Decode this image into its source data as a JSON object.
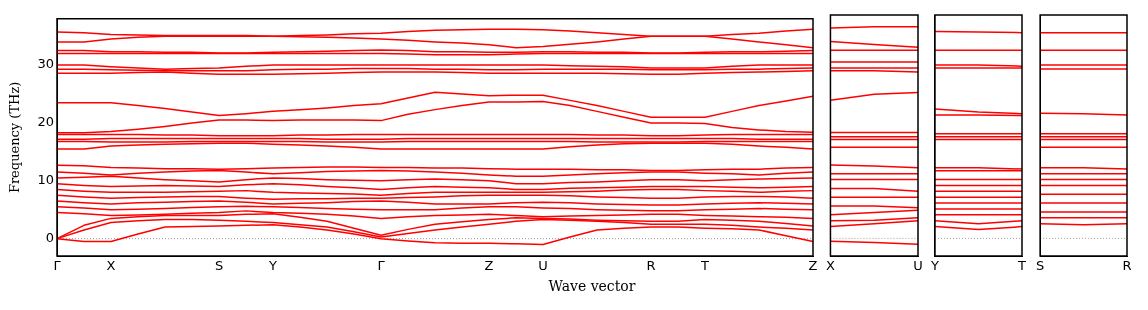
{
  "chart_data": [
    {
      "type": "line",
      "ylabel": "Frequency (THz)",
      "xlabel": "Wave vector",
      "grid": false,
      "legend": false,
      "marker": "none",
      "line_style": "solid",
      "categories": [
        "Γ",
        null,
        "X",
        null,
        null,
        null,
        "S",
        null,
        "Y",
        null,
        null,
        null,
        "Γ",
        null,
        null,
        null,
        "Z",
        null,
        "U",
        null,
        null,
        null,
        "R",
        null,
        "T",
        null,
        null,
        null,
        "Z"
      ],
      "ylim": [
        -3,
        38
      ],
      "yticks": [
        0,
        10,
        20,
        30
      ],
      "ref_lines": [
        {
          "axis": "y",
          "value": 0,
          "color": "#808080",
          "line_style": "dotted"
        }
      ],
      "series": [
        {
          "color": "#ff0000",
          "values": [
            35.7,
            35.6,
            35.3,
            35.2,
            35.1,
            35.1,
            35.1,
            35.1,
            35.0,
            35.1,
            35.2,
            35.4,
            35.5,
            35.8,
            36.0,
            36.1,
            36.2,
            36.2,
            36.1,
            35.9,
            35.6,
            35.3,
            35.0,
            35.0,
            35.0,
            35.3,
            35.5,
            35.9,
            36.2
          ]
        },
        {
          "color": "#ff0000",
          "values": [
            34.0,
            34.0,
            34.5,
            34.8,
            35.0,
            35.0,
            35.0,
            35.0,
            35.0,
            34.9,
            34.8,
            34.7,
            34.5,
            34.3,
            34.0,
            33.8,
            33.5,
            33.0,
            33.2,
            33.6,
            34.0,
            34.5,
            35.0,
            35.0,
            35.0,
            34.5,
            34.0,
            33.5,
            33.0
          ]
        },
        {
          "color": "#ff0000",
          "values": [
            32.5,
            32.5,
            32.3,
            32.3,
            32.2,
            32.2,
            32.1,
            32.1,
            32.2,
            32.3,
            32.4,
            32.5,
            32.6,
            32.5,
            32.3,
            32.3,
            32.2,
            32.2,
            32.3,
            32.3,
            32.2,
            32.2,
            32.1,
            32.1,
            32.2,
            32.3,
            32.3,
            32.4,
            32.5
          ]
        },
        {
          "color": "#ff0000",
          "values": [
            32.0,
            32.0,
            32.0,
            32.0,
            32.0,
            32.0,
            32.0,
            32.0,
            32.0,
            32.0,
            32.0,
            32.0,
            32.0,
            31.9,
            31.8,
            31.8,
            31.8,
            31.9,
            32.0,
            32.0,
            32.0,
            32.0,
            32.0,
            32.0,
            32.0,
            32.0,
            32.0,
            32.0,
            32.0
          ]
        },
        {
          "color": "#ff0000",
          "values": [
            30.0,
            30.0,
            29.7,
            29.5,
            29.3,
            29.4,
            29.5,
            29.8,
            30.0,
            30.0,
            30.0,
            30.0,
            30.0,
            30.0,
            30.0,
            30.0,
            30.0,
            30.0,
            30.0,
            29.9,
            29.8,
            29.7,
            29.5,
            29.5,
            29.5,
            29.8,
            30.0,
            30.0,
            30.0
          ]
        },
        {
          "color": "#ff0000",
          "values": [
            29.3,
            29.3,
            29.2,
            29.1,
            29.0,
            29.0,
            29.0,
            29.0,
            29.2,
            29.3,
            29.3,
            29.4,
            29.4,
            29.4,
            29.3,
            29.3,
            29.2,
            29.2,
            29.3,
            29.3,
            29.3,
            29.3,
            29.2,
            29.2,
            29.2,
            29.3,
            29.3,
            29.4,
            29.5
          ]
        },
        {
          "color": "#ff0000",
          "values": [
            28.6,
            28.6,
            28.6,
            28.7,
            28.8,
            28.6,
            28.4,
            28.4,
            28.4,
            28.5,
            28.6,
            28.7,
            28.8,
            28.8,
            28.8,
            28.7,
            28.6,
            28.6,
            28.6,
            28.6,
            28.6,
            28.5,
            28.4,
            28.4,
            28.6,
            28.7,
            28.8,
            28.9,
            29.0
          ]
        },
        {
          "color": "#ff0000",
          "values": [
            23.5,
            23.5,
            23.5,
            23.0,
            22.5,
            21.9,
            21.3,
            21.6,
            22.0,
            22.3,
            22.6,
            23.0,
            23.3,
            24.3,
            25.3,
            25.0,
            24.7,
            24.8,
            24.8,
            23.9,
            23.0,
            22.0,
            21.0,
            21.0,
            21.0,
            22.0,
            23.0,
            23.8,
            24.6
          ]
        },
        {
          "color": "#ff0000",
          "values": [
            18.3,
            18.3,
            18.5,
            18.9,
            19.4,
            20.0,
            20.5,
            20.5,
            20.4,
            20.5,
            20.5,
            20.5,
            20.4,
            21.5,
            22.3,
            23.0,
            23.6,
            23.6,
            23.7,
            23.0,
            22.0,
            21.0,
            20.0,
            20.0,
            19.9,
            19.2,
            18.8,
            18.5,
            18.4
          ]
        },
        {
          "color": "#ff0000",
          "values": [
            18.0,
            18.0,
            18.0,
            18.0,
            17.9,
            17.9,
            17.8,
            17.8,
            17.8,
            17.9,
            17.9,
            18.0,
            18.0,
            18.0,
            18.0,
            18.0,
            18.0,
            18.0,
            18.0,
            18.0,
            17.9,
            17.9,
            17.8,
            17.8,
            17.9,
            18.0,
            18.0,
            18.0,
            18.0
          ]
        },
        {
          "color": "#ff0000",
          "values": [
            17.2,
            17.2,
            17.3,
            17.3,
            17.3,
            17.3,
            17.3,
            17.3,
            17.3,
            17.3,
            17.2,
            17.2,
            17.2,
            17.3,
            17.3,
            17.3,
            17.3,
            17.3,
            17.3,
            17.3,
            17.3,
            17.3,
            17.3,
            17.3,
            17.3,
            17.3,
            17.2,
            17.2,
            17.2
          ]
        },
        {
          "color": "#ff0000",
          "values": [
            16.8,
            16.8,
            16.7,
            16.7,
            16.7,
            16.8,
            16.8,
            16.8,
            16.8,
            16.8,
            16.7,
            16.7,
            16.7,
            16.8,
            16.8,
            16.8,
            16.8,
            16.8,
            16.8,
            16.8,
            16.7,
            16.7,
            16.7,
            16.7,
            16.8,
            16.8,
            16.8,
            16.8,
            16.8
          ]
        },
        {
          "color": "#ff0000",
          "values": [
            15.5,
            15.5,
            16.0,
            16.2,
            16.3,
            16.4,
            16.5,
            16.5,
            16.3,
            16.2,
            16.0,
            15.8,
            15.5,
            15.5,
            15.5,
            15.5,
            15.5,
            15.5,
            15.5,
            15.9,
            16.2,
            16.4,
            16.5,
            16.5,
            16.5,
            16.3,
            16.0,
            15.8,
            15.5
          ]
        },
        {
          "color": "#ff0000",
          "values": [
            12.7,
            12.6,
            12.3,
            12.2,
            12.1,
            12.1,
            12.0,
            12.1,
            12.2,
            12.3,
            12.4,
            12.4,
            12.3,
            12.3,
            12.2,
            12.2,
            12.1,
            12.0,
            12.0,
            12.0,
            11.9,
            11.9,
            11.8,
            11.8,
            11.9,
            12.0,
            12.0,
            12.2,
            12.3
          ]
        },
        {
          "color": "#ff0000",
          "values": [
            11.5,
            11.3,
            11.0,
            11.3,
            11.5,
            11.7,
            11.8,
            11.5,
            11.2,
            11.4,
            11.6,
            11.7,
            11.8,
            11.7,
            11.5,
            11.3,
            11.0,
            10.8,
            10.8,
            11.0,
            11.2,
            11.4,
            11.5,
            11.5,
            11.3,
            11.2,
            11.0,
            11.3,
            11.5
          ]
        },
        {
          "color": "#ff0000",
          "values": [
            10.5,
            10.6,
            10.8,
            10.5,
            10.2,
            10.0,
            9.8,
            10.2,
            10.5,
            10.4,
            10.2,
            10.1,
            10.0,
            10.2,
            10.3,
            10.2,
            10.0,
            9.5,
            9.5,
            9.7,
            9.8,
            10.0,
            10.2,
            10.2,
            10.0,
            10.2,
            10.3,
            10.4,
            10.5
          ]
        },
        {
          "color": "#ff0000",
          "values": [
            9.5,
            9.2,
            9.0,
            9.1,
            9.2,
            9.1,
            9.0,
            9.3,
            9.5,
            9.3,
            9.0,
            8.8,
            8.5,
            8.8,
            9.0,
            8.9,
            8.8,
            8.5,
            8.5,
            8.7,
            8.8,
            8.9,
            9.0,
            9.0,
            9.0,
            8.9,
            8.8,
            8.9,
            9.0
          ]
        },
        {
          "color": "#ff0000",
          "values": [
            8.5,
            8.2,
            8.0,
            8.0,
            8.0,
            8.1,
            8.2,
            8.3,
            8.0,
            7.9,
            7.8,
            7.7,
            7.5,
            7.8,
            8.0,
            8.0,
            8.0,
            8.0,
            8.0,
            8.1,
            8.2,
            8.4,
            8.5,
            8.5,
            8.3,
            8.2,
            8.0,
            8.2,
            8.3
          ]
        },
        {
          "color": "#ff0000",
          "values": [
            7.5,
            7.2,
            7.0,
            7.1,
            7.2,
            7.3,
            7.3,
            7.0,
            6.8,
            6.9,
            6.9,
            7.0,
            7.0,
            7.1,
            7.2,
            7.4,
            7.5,
            7.5,
            7.5,
            7.4,
            7.2,
            7.1,
            7.0,
            7.0,
            7.2,
            7.3,
            7.3,
            7.2,
            7.0
          ]
        },
        {
          "color": "#ff0000",
          "values": [
            6.5,
            6.2,
            6.0,
            6.2,
            6.3,
            6.4,
            6.5,
            6.3,
            6.0,
            6.1,
            6.2,
            6.4,
            6.5,
            6.3,
            6.0,
            6.0,
            6.0,
            6.2,
            6.3,
            6.2,
            6.0,
            5.9,
            5.8,
            5.8,
            6.0,
            6.1,
            6.2,
            6.1,
            6.0
          ]
        },
        {
          "color": "#ff0000",
          "values": [
            5.5,
            5.3,
            5.0,
            5.1,
            5.2,
            5.4,
            5.5,
            5.6,
            5.5,
            5.4,
            5.2,
            5.1,
            5.0,
            5.0,
            5.0,
            5.3,
            5.5,
            5.5,
            5.3,
            5.2,
            5.0,
            4.9,
            4.8,
            4.8,
            5.0,
            5.1,
            5.2,
            5.1,
            5.0
          ]
        },
        {
          "color": "#ff0000",
          "values": [
            4.5,
            4.3,
            4.0,
            4.1,
            4.2,
            4.4,
            4.5,
            4.8,
            4.5,
            4.4,
            4.2,
            3.9,
            3.5,
            3.8,
            4.0,
            4.1,
            4.2,
            4.0,
            3.8,
            3.9,
            4.0,
            4.1,
            4.2,
            4.2,
            4.0,
            3.9,
            3.8,
            3.7,
            3.5
          ]
        },
        {
          "color": "#ff0000",
          "values": [
            0,
            -0.5,
            -0.5,
            0.8,
            2.0,
            2.1,
            2.2,
            2.3,
            2.4,
            2.0,
            1.5,
            0.8,
            0,
            -0.4,
            -0.7,
            -0.8,
            -0.8,
            -0.9,
            -1.0,
            0.3,
            1.5,
            1.8,
            2.0,
            2.0,
            1.8,
            1.7,
            1.5,
            0.5,
            -0.5
          ]
        },
        {
          "color": "#ff0000",
          "values": [
            0,
            1.5,
            2.8,
            3.1,
            3.3,
            3.3,
            3.2,
            3.0,
            2.8,
            2.4,
            2.0,
            1.2,
            0.3,
            0.9,
            1.5,
            2.0,
            2.5,
            3.0,
            3.3,
            3.2,
            3.0,
            2.8,
            2.5,
            2.5,
            2.5,
            2.3,
            2.0,
            1.8,
            1.5
          ]
        },
        {
          "color": "#ff0000",
          "values": [
            0,
            2.3,
            3.5,
            3.8,
            4.0,
            4.0,
            4.0,
            4.2,
            4.3,
            3.7,
            3.0,
            1.8,
            0.6,
            1.6,
            2.5,
            2.9,
            3.3,
            3.6,
            3.5,
            3.4,
            3.2,
            3.1,
            3.0,
            3.0,
            3.3,
            3.2,
            3.0,
            2.6,
            2.2
          ]
        }
      ]
    },
    {
      "type": "line",
      "grid": false,
      "legend": false,
      "marker": "none",
      "line_style": "solid",
      "tick_labels": "x",
      "categories": [
        "X",
        null,
        "U"
      ],
      "ylim": [
        -3,
        38
      ],
      "ref_lines": [
        {
          "axis": "y",
          "value": 0,
          "color": "#808080",
          "line_style": "dotted"
        }
      ],
      "series": [
        {
          "color": "#ff0000",
          "values": [
            35.8,
            36.0,
            36.0
          ]
        },
        {
          "color": "#ff0000",
          "values": [
            33.5,
            33.0,
            32.5
          ]
        },
        {
          "color": "#ff0000",
          "values": [
            32.0,
            32.0,
            32.0
          ]
        },
        {
          "color": "#ff0000",
          "values": [
            30.0,
            30.0,
            30.0
          ]
        },
        {
          "color": "#ff0000",
          "values": [
            29.0,
            29.0,
            29.0
          ]
        },
        {
          "color": "#ff0000",
          "values": [
            28.5,
            28.5,
            28.3
          ]
        },
        {
          "color": "#ff0000",
          "values": [
            23.5,
            24.5,
            24.8
          ]
        },
        {
          "color": "#ff0000",
          "values": [
            18.0,
            18.0,
            18.0
          ]
        },
        {
          "color": "#ff0000",
          "values": [
            17.3,
            17.3,
            17.3
          ]
        },
        {
          "color": "#ff0000",
          "values": [
            16.8,
            16.8,
            16.8
          ]
        },
        {
          "color": "#ff0000",
          "values": [
            15.5,
            15.5,
            15.5
          ]
        },
        {
          "color": "#ff0000",
          "values": [
            12.5,
            12.3,
            12.0
          ]
        },
        {
          "color": "#ff0000",
          "values": [
            11.0,
            11.0,
            11.0
          ]
        },
        {
          "color": "#ff0000",
          "values": [
            10.0,
            10.0,
            10.0
          ]
        },
        {
          "color": "#ff0000",
          "values": [
            8.5,
            8.5,
            8.0
          ]
        },
        {
          "color": "#ff0000",
          "values": [
            7.0,
            7.0,
            7.0
          ]
        },
        {
          "color": "#ff0000",
          "values": [
            5.5,
            5.5,
            5.2
          ]
        },
        {
          "color": "#ff0000",
          "values": [
            4.0,
            4.4,
            4.8
          ]
        },
        {
          "color": "#ff0000",
          "values": [
            3.0,
            3.1,
            3.5
          ]
        },
        {
          "color": "#ff0000",
          "values": [
            2.0,
            2.5,
            3.0
          ]
        },
        {
          "color": "#ff0000",
          "values": [
            -0.5,
            -0.7,
            -1.0
          ]
        }
      ]
    },
    {
      "type": "line",
      "grid": false,
      "legend": false,
      "marker": "none",
      "line_style": "solid",
      "tick_labels": "x",
      "categories": [
        "Y",
        null,
        "T"
      ],
      "ylim": [
        -3,
        38
      ],
      "ref_lines": [
        {
          "axis": "y",
          "value": 0,
          "color": "#808080",
          "line_style": "dotted"
        }
      ],
      "series": [
        {
          "color": "#ff0000",
          "values": [
            35.2,
            35.1,
            35.0
          ]
        },
        {
          "color": "#ff0000",
          "values": [
            32.0,
            32.0,
            32.0
          ]
        },
        {
          "color": "#ff0000",
          "values": [
            29.5,
            29.5,
            29.3
          ]
        },
        {
          "color": "#ff0000",
          "values": [
            29.0,
            29.0,
            29.0
          ]
        },
        {
          "color": "#ff0000",
          "values": [
            22.0,
            21.5,
            21.2
          ]
        },
        {
          "color": "#ff0000",
          "values": [
            21.0,
            21.0,
            20.9
          ]
        },
        {
          "color": "#ff0000",
          "values": [
            17.8,
            17.8,
            17.8
          ]
        },
        {
          "color": "#ff0000",
          "values": [
            17.3,
            17.3,
            17.3
          ]
        },
        {
          "color": "#ff0000",
          "values": [
            16.8,
            16.8,
            16.8
          ]
        },
        {
          "color": "#ff0000",
          "values": [
            12.0,
            12.0,
            11.8
          ]
        },
        {
          "color": "#ff0000",
          "values": [
            11.5,
            11.5,
            11.5
          ]
        },
        {
          "color": "#ff0000",
          "values": [
            10.0,
            10.0,
            10.0
          ]
        },
        {
          "color": "#ff0000",
          "values": [
            9.0,
            9.0,
            9.0
          ]
        },
        {
          "color": "#ff0000",
          "values": [
            8.0,
            8.0,
            8.0
          ]
        },
        {
          "color": "#ff0000",
          "values": [
            7.0,
            7.0,
            7.0
          ]
        },
        {
          "color": "#ff0000",
          "values": [
            6.0,
            6.0,
            6.0
          ]
        },
        {
          "color": "#ff0000",
          "values": [
            5.0,
            5.0,
            5.0
          ]
        },
        {
          "color": "#ff0000",
          "values": [
            4.0,
            4.0,
            4.0
          ]
        },
        {
          "color": "#ff0000",
          "values": [
            3.0,
            2.5,
            3.0
          ]
        },
        {
          "color": "#ff0000",
          "values": [
            2.0,
            1.5,
            2.0
          ]
        }
      ]
    },
    {
      "type": "line",
      "grid": false,
      "legend": false,
      "marker": "none",
      "line_style": "solid",
      "tick_labels": "x",
      "categories": [
        "S",
        null,
        "R"
      ],
      "ylim": [
        -3,
        38
      ],
      "ref_lines": [
        {
          "axis": "y",
          "value": 0,
          "color": "#808080",
          "line_style": "dotted"
        }
      ],
      "series": [
        {
          "color": "#ff0000",
          "values": [
            35.0,
            35.0,
            35.0
          ]
        },
        {
          "color": "#ff0000",
          "values": [
            32.0,
            32.0,
            32.0
          ]
        },
        {
          "color": "#ff0000",
          "values": [
            29.5,
            29.5,
            29.5
          ]
        },
        {
          "color": "#ff0000",
          "values": [
            28.8,
            28.8,
            28.8
          ]
        },
        {
          "color": "#ff0000",
          "values": [
            21.3,
            21.2,
            21.0
          ]
        },
        {
          "color": "#ff0000",
          "values": [
            17.8,
            17.8,
            17.8
          ]
        },
        {
          "color": "#ff0000",
          "values": [
            17.3,
            17.3,
            17.3
          ]
        },
        {
          "color": "#ff0000",
          "values": [
            16.8,
            16.8,
            16.8
          ]
        },
        {
          "color": "#ff0000",
          "values": [
            15.5,
            15.5,
            15.5
          ]
        },
        {
          "color": "#ff0000",
          "values": [
            12.0,
            12.0,
            11.8
          ]
        },
        {
          "color": "#ff0000",
          "values": [
            11.0,
            11.0,
            11.0
          ]
        },
        {
          "color": "#ff0000",
          "values": [
            10.0,
            10.0,
            10.0
          ]
        },
        {
          "color": "#ff0000",
          "values": [
            9.0,
            9.0,
            9.0
          ]
        },
        {
          "color": "#ff0000",
          "values": [
            7.5,
            7.5,
            7.5
          ]
        },
        {
          "color": "#ff0000",
          "values": [
            6.0,
            6.0,
            6.0
          ]
        },
        {
          "color": "#ff0000",
          "values": [
            4.5,
            4.5,
            4.5
          ]
        },
        {
          "color": "#ff0000",
          "values": [
            3.5,
            3.5,
            3.5
          ]
        },
        {
          "color": "#ff0000",
          "values": [
            2.5,
            2.3,
            2.5
          ]
        }
      ]
    }
  ]
}
